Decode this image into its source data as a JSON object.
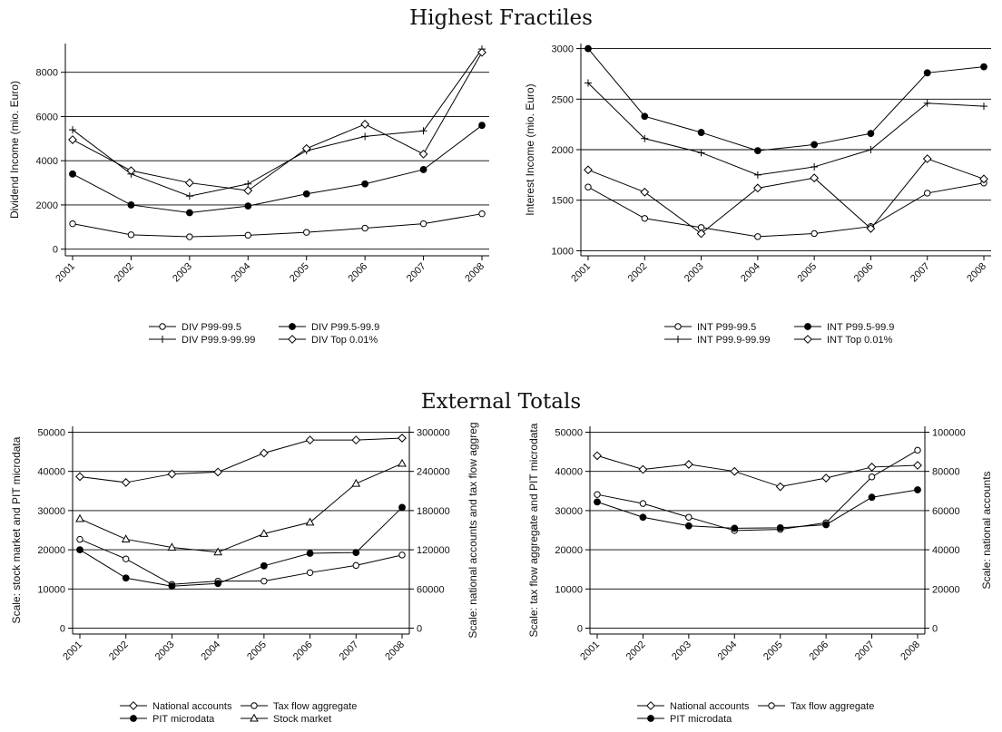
{
  "figure": {
    "section_titles": [
      "Highest Fractiles",
      "External Totals"
    ]
  },
  "chart_data": [
    {
      "type": "line",
      "categories": [
        "2001",
        "2002",
        "2003",
        "2004",
        "2005",
        "2006",
        "2007",
        "2008"
      ],
      "ylabel": "Dividend Income (mio. Euro)",
      "ylim": [
        -300,
        9300
      ],
      "yticks": [
        0,
        2000,
        4000,
        6000,
        8000
      ],
      "ytick_labels": [
        "0",
        "2000",
        "4000",
        "6000",
        "8000"
      ],
      "grid": true,
      "legend_columns": 2,
      "series": [
        {
          "name": "DIV P99-99.5",
          "marker": "circle-open",
          "values": [
            1150,
            650,
            560,
            630,
            760,
            950,
            1150,
            1600
          ]
        },
        {
          "name": "DIV P99.5-99.9",
          "marker": "circle-filled",
          "values": [
            3400,
            2000,
            1650,
            1950,
            2500,
            2950,
            3600,
            5600
          ]
        },
        {
          "name": "DIV P99.9-99.99",
          "marker": "plus",
          "values": [
            5400,
            3400,
            2400,
            2950,
            4450,
            5100,
            5350,
            9050
          ]
        },
        {
          "name": "DIV Top 0.01%",
          "marker": "diamond-open",
          "values": [
            4950,
            3550,
            3000,
            2650,
            4550,
            5650,
            4300,
            8900
          ]
        }
      ]
    },
    {
      "type": "line",
      "categories": [
        "2001",
        "2002",
        "2003",
        "2004",
        "2005",
        "2006",
        "2007",
        "2008"
      ],
      "ylabel": "Interest Income (mio. Euro)",
      "ylim": [
        950,
        3050
      ],
      "yticks": [
        1000,
        1500,
        2000,
        2500,
        3000
      ],
      "ytick_labels": [
        "1000",
        "1500",
        "2000",
        "2500",
        "3000"
      ],
      "grid": true,
      "legend_columns": 2,
      "series": [
        {
          "name": "INT P99-99.5",
          "marker": "circle-open",
          "values": [
            1630,
            1320,
            1230,
            1140,
            1170,
            1240,
            1570,
            1670
          ]
        },
        {
          "name": "INT P99.5-99.9",
          "marker": "circle-filled",
          "values": [
            3000,
            2330,
            2170,
            1990,
            2050,
            2160,
            2760,
            2820
          ]
        },
        {
          "name": "INT P99.9-99.99",
          "marker": "plus",
          "values": [
            2660,
            2110,
            1970,
            1750,
            1830,
            2000,
            2460,
            2430
          ]
        },
        {
          "name": "INT Top 0.01%",
          "marker": "diamond-open",
          "values": [
            1800,
            1580,
            1170,
            1620,
            1720,
            1220,
            1910,
            1710
          ]
        }
      ]
    },
    {
      "type": "line",
      "categories": [
        "2001",
        "2002",
        "2003",
        "2004",
        "2005",
        "2006",
        "2007",
        "2008"
      ],
      "ylabel": "Scale: stock market and PIT microdata",
      "ylabel_right": "Scale: national accounts and tax flow aggreg",
      "ylim": [
        -1500,
        51500
      ],
      "yticks": [
        0,
        10000,
        20000,
        30000,
        40000,
        50000
      ],
      "ytick_labels": [
        "0",
        "10000",
        "20000",
        "30000",
        "40000",
        "50000"
      ],
      "ylim_right": [
        -9000,
        309000
      ],
      "yticks_right": [
        0,
        60000,
        120000,
        180000,
        240000,
        300000
      ],
      "ytick_labels_right": [
        "0",
        "60000",
        "120000",
        "180000",
        "240000",
        "300000"
      ],
      "grid": true,
      "grid_axis": "left",
      "legend_columns": 2,
      "series": [
        {
          "name": "National accounts",
          "axis": "right",
          "marker": "diamond-open",
          "values": [
            232000,
            223000,
            236000,
            239000,
            268000,
            288000,
            288000,
            291000
          ]
        },
        {
          "name": "Tax flow aggregate",
          "axis": "right",
          "marker": "circle-open",
          "values": [
            136000,
            106000,
            67000,
            72000,
            72000,
            85000,
            96000,
            112000
          ]
        },
        {
          "name": "PIT microdata",
          "axis": "left",
          "marker": "circle-filled",
          "values": [
            20000,
            12800,
            10700,
            11400,
            15900,
            19100,
            19300,
            30800
          ]
        },
        {
          "name": "Stock market",
          "axis": "left",
          "marker": "triangle-open",
          "values": [
            27900,
            22700,
            20600,
            19400,
            24100,
            27000,
            36900,
            42000
          ]
        }
      ]
    },
    {
      "type": "line",
      "categories": [
        "2001",
        "2002",
        "2003",
        "2004",
        "2005",
        "2006",
        "2007",
        "2008"
      ],
      "ylabel": "Scale: tax flow aggregate and PIT microdata",
      "ylabel_right": "Scale: national accounts",
      "ylim": [
        -1500,
        51500
      ],
      "yticks": [
        0,
        10000,
        20000,
        30000,
        40000,
        50000
      ],
      "ytick_labels": [
        "0",
        "10000",
        "20000",
        "30000",
        "40000",
        "50000"
      ],
      "ylim_right": [
        -3000,
        103000
      ],
      "yticks_right": [
        0,
        20000,
        40000,
        60000,
        80000,
        100000
      ],
      "ytick_labels_right": [
        "0",
        "20000",
        "40000",
        "60000",
        "80000",
        "100000"
      ],
      "grid": true,
      "grid_axis": "left",
      "legend_columns": 2,
      "series": [
        {
          "name": "National accounts",
          "axis": "right",
          "marker": "diamond-open",
          "values": [
            88000,
            81000,
            83600,
            80000,
            72200,
            76600,
            82200,
            83100
          ]
        },
        {
          "name": "Tax flow aggregate",
          "axis": "left",
          "marker": "circle-open",
          "values": [
            34100,
            31800,
            28300,
            24900,
            25200,
            26900,
            38600,
            45400
          ]
        },
        {
          "name": "PIT microdata",
          "axis": "left",
          "marker": "circle-filled",
          "values": [
            32200,
            28300,
            26100,
            25500,
            25600,
            26400,
            33400,
            35300
          ]
        }
      ]
    }
  ]
}
